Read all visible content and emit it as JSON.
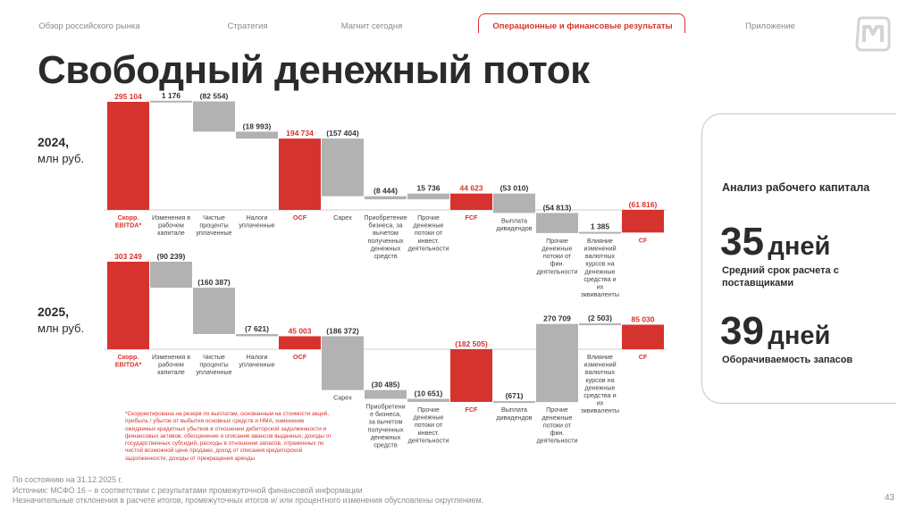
{
  "nav": {
    "items": [
      "Обзор российского рынка",
      "Стратегия",
      "Магнит сегодня",
      "Операционные и финансовые результаты",
      "Приложение"
    ],
    "active": 3
  },
  "title": "Свободный денежный поток",
  "colors": {
    "accent": "#d7332e",
    "bar_gray": "#b2b2b2",
    "text": "#2b2b2b"
  },
  "logo_icon": "magnit-logo-icon",
  "chart_data": [
    {
      "type": "waterfall",
      "label_year": "2024,",
      "label_unit": "млн руб.",
      "categories": [
        "Скорр. EBITDA*",
        "Изменения в рабочем капитале",
        "Чистые проценты уплаченные",
        "Налоги уплаченные",
        "OCF",
        "Capex",
        "Приобретение бизнеса, за вычетом полученных денежных средств",
        "Прочие денежные потоки от инвест. деятельности",
        "FCF",
        "Выплата дивидендов",
        "Прочие денежные потоки от фин. деятельности",
        "Влияние изменений валютных курсов на денежные средства и их эквиваленты",
        "CF"
      ],
      "value_labels": [
        "295 104",
        "1 176",
        "(82 554)",
        "(18 993)",
        "194 734",
        "(157 404)",
        "(8 444)",
        "15 736",
        "44 623",
        "(53 010)",
        "(54 813)",
        "1 385",
        "(61 816)"
      ],
      "values": [
        295104,
        1176,
        -82554,
        -18993,
        194734,
        -157404,
        -8444,
        15736,
        44623,
        -53010,
        -54813,
        1385,
        -61816
      ],
      "is_total": [
        true,
        false,
        false,
        false,
        true,
        false,
        false,
        false,
        true,
        false,
        false,
        false,
        true
      ]
    },
    {
      "type": "waterfall",
      "label_year": "2025,",
      "label_unit": "млн руб.",
      "categories": [
        "Скорр. EBITDA*",
        "Изменения в рабочем капитале",
        "Чистые проценты уплаченные",
        "Налоги уплаченные",
        "OCF",
        "Capex",
        "Приобретени е бизнеса, за вычетом полученных денежных средств",
        "Прочие денежные потоки от инвест. деятельности",
        "FCF",
        "Выплата дивидендов",
        "Прочие денежные потоки от фин. деятельности",
        "Влияние изменений валютных курсов на денежные средства и их эквиваленты",
        "CF"
      ],
      "value_labels": [
        "303 249",
        "(90 239)",
        "(160 387)",
        "(7 621)",
        "45 003",
        "(186 372)",
        "(30 485)",
        "(10 651)",
        "(182 505)",
        "(671)",
        "270 709",
        "(2 503)",
        "85 030"
      ],
      "values": [
        303249,
        -90239,
        -160387,
        -7621,
        45003,
        -186372,
        -30485,
        -10651,
        -182505,
        -671,
        270709,
        -2503,
        85030
      ],
      "is_total": [
        true,
        false,
        false,
        false,
        true,
        false,
        false,
        false,
        true,
        false,
        false,
        false,
        true
      ]
    }
  ],
  "footnote": "*Скорректирована на резерв по выплатам, основанным на стоимости акций, прибыль / убыток от выбытия основных средств и НМА, изменение ожидаемых кредитных убытков в отношении дебиторской задолженности и финансовых активов, обесценение и списание авансов выданных, доходы от государственных субсидий, расходы в отношении запасов, отраженных по чистой возможной цене продажи, доход от списания кредиторской задолженности, доходы от прекращения аренды",
  "source": [
    "По состоянию на 31.12.2025 г.",
    "Источник: МСФО 16 – в соответствии с результатами промежуточной финансовой информации",
    "Незначительные отклонения в расчете итогов, промежуточных итогов и/ или процентного изменения обусловлены округлением."
  ],
  "page_number": "43",
  "working_capital": {
    "title": "Анализ рабочего капитала",
    "metric1_value": "35",
    "metric1_unit": "дней",
    "metric1_desc": "Средний срок расчета с поставщиками",
    "metric2_value": "39",
    "metric2_unit": "дней",
    "metric2_desc": "Оборачиваемость запасов"
  }
}
